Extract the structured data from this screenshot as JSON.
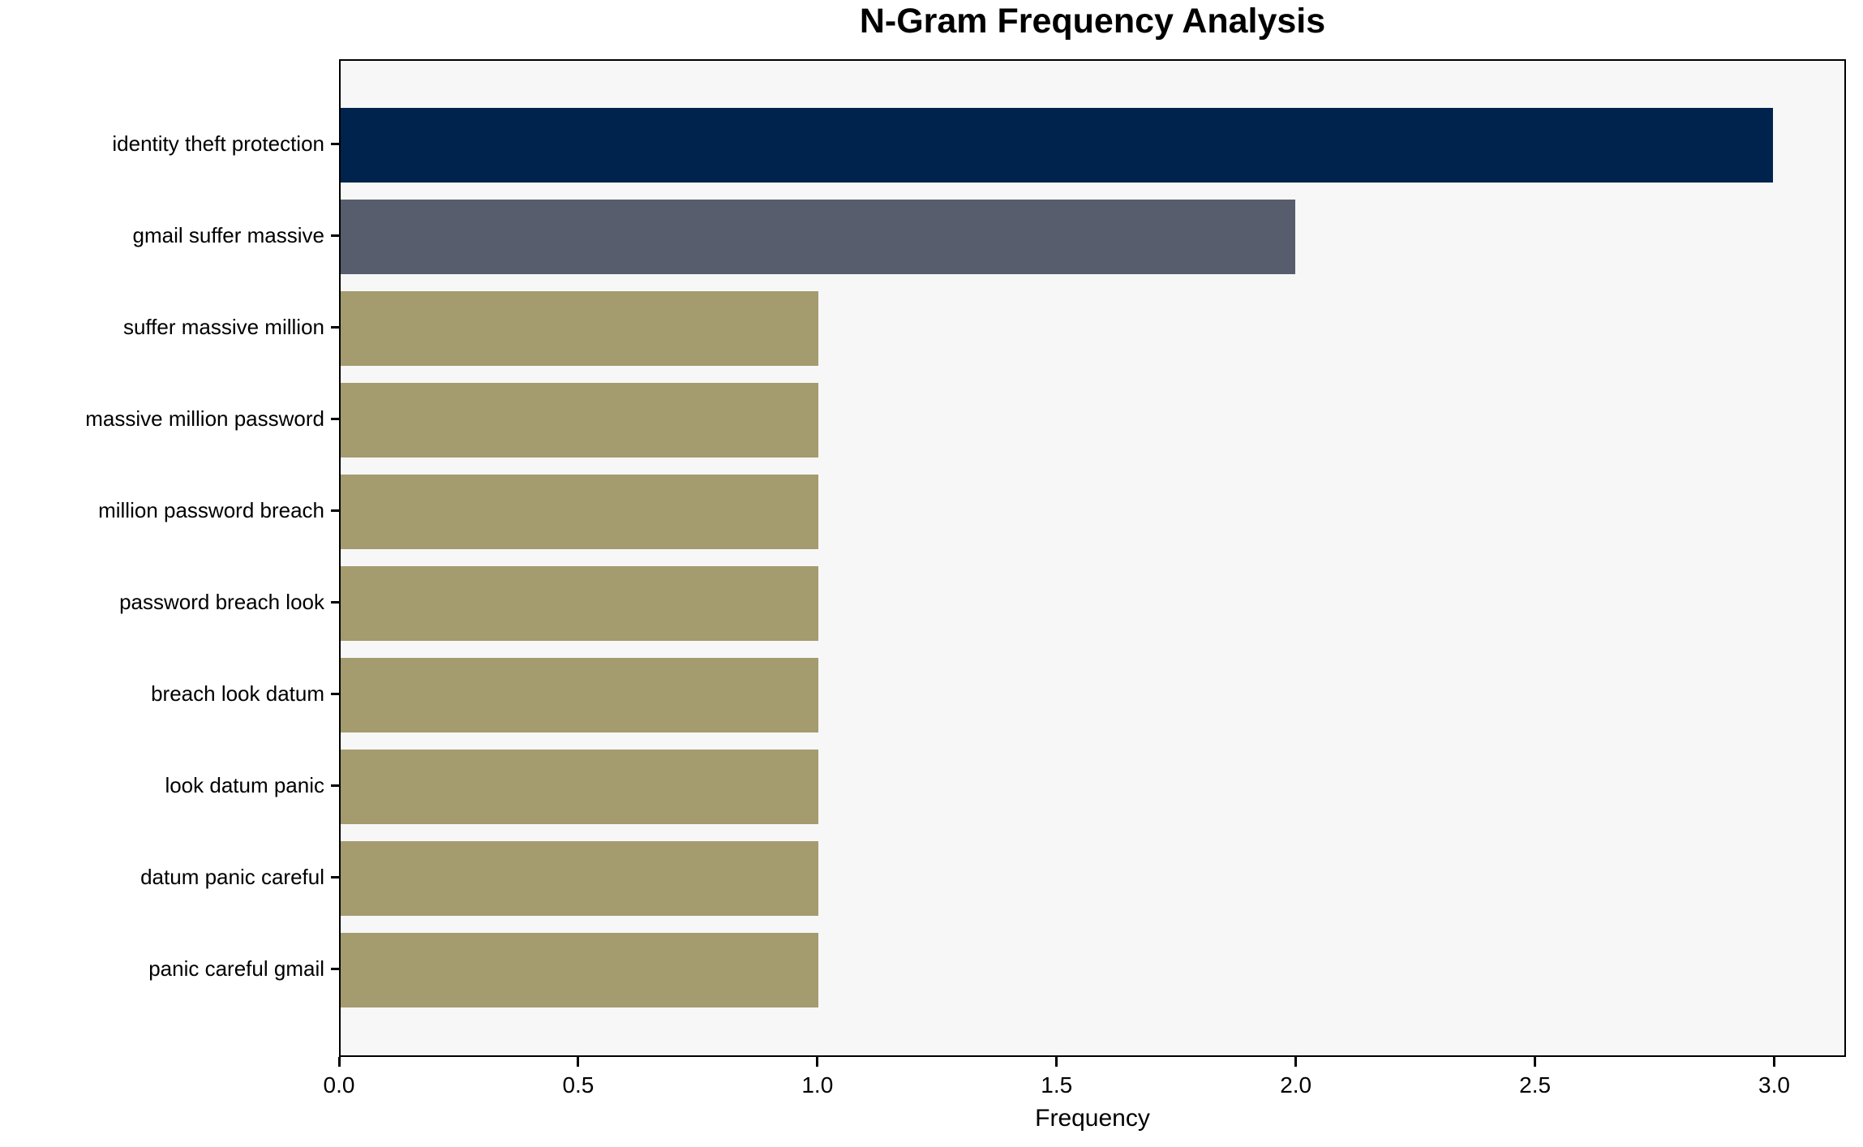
{
  "chart_data": {
    "type": "bar",
    "orientation": "horizontal",
    "title": "N-Gram Frequency Analysis",
    "xlabel": "Frequency",
    "ylabel": "",
    "categories": [
      "identity theft protection",
      "gmail suffer massive",
      "suffer massive million",
      "massive million password",
      "million password breach",
      "password breach look",
      "breach look datum",
      "look datum panic",
      "datum panic careful",
      "panic careful gmail"
    ],
    "values": [
      3,
      2,
      1,
      1,
      1,
      1,
      1,
      1,
      1,
      1
    ],
    "bar_colors": [
      "#00234d",
      "#575d6d",
      "#a49b6f",
      "#a49b6f",
      "#a49b6f",
      "#a49b6f",
      "#a49b6f",
      "#a49b6f",
      "#a49b6f",
      "#a49b6f"
    ],
    "xlim": [
      0,
      3.15
    ],
    "xticks": [
      0.0,
      0.5,
      1.0,
      1.5,
      2.0,
      2.5,
      3.0
    ],
    "xtick_labels": [
      "0.0",
      "0.5",
      "1.0",
      "1.5",
      "2.0",
      "2.5",
      "3.0"
    ],
    "grid": false,
    "legend": null,
    "colors": {
      "plot_background": "#f7f7f7",
      "figure_background": "#ffffff",
      "spine": "#000000",
      "text": "#000000"
    }
  }
}
